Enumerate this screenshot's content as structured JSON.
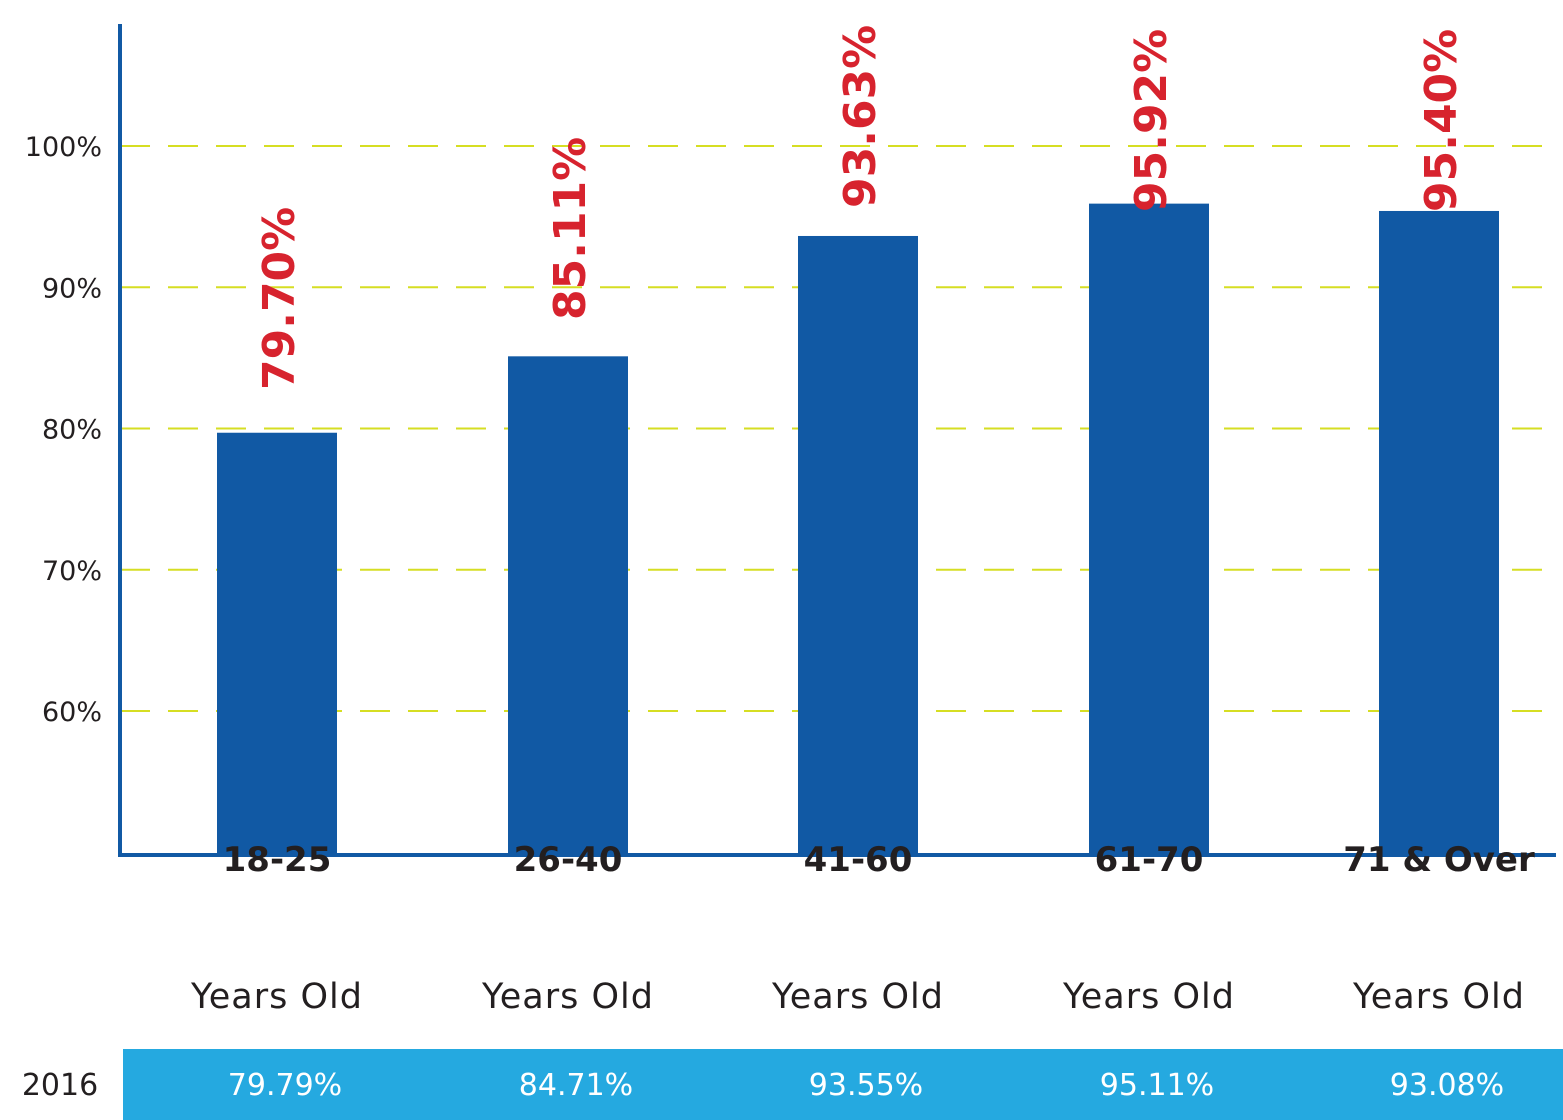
{
  "chart_data": {
    "type": "bar",
    "categories": [
      {
        "range": "18-25",
        "sub": "Years Old"
      },
      {
        "range": "26-40",
        "sub": "Years Old"
      },
      {
        "range": "41-60",
        "sub": "Years Old"
      },
      {
        "range": "61-70",
        "sub": "Years Old"
      },
      {
        "range": "71 & Over",
        "sub": "Years Old"
      }
    ],
    "values": [
      79.7,
      85.11,
      93.63,
      95.92,
      95.4
    ],
    "data_labels": [
      "79.70%",
      "85.11%",
      "93.63%",
      "95.92%",
      "95.40%"
    ],
    "yticks": [
      {
        "value": 60,
        "label": "60%"
      },
      {
        "value": 70,
        "label": "70%"
      },
      {
        "value": 80,
        "label": "80%"
      },
      {
        "value": 90,
        "label": "90%"
      },
      {
        "value": 100,
        "label": "100%"
      }
    ],
    "ylim": [
      50,
      110
    ],
    "grid": true,
    "comparison_row": {
      "label": "2016",
      "values": [
        "79.79%",
        "84.71%",
        "93.55%",
        "95.11%",
        "93.08%"
      ]
    },
    "colors": {
      "bar": "#1159a4",
      "axis": "#1159a4",
      "grid": "#d6de23",
      "data_label": "#d7232e",
      "row_bg": "#25a9e0",
      "text": "#231f20"
    }
  }
}
